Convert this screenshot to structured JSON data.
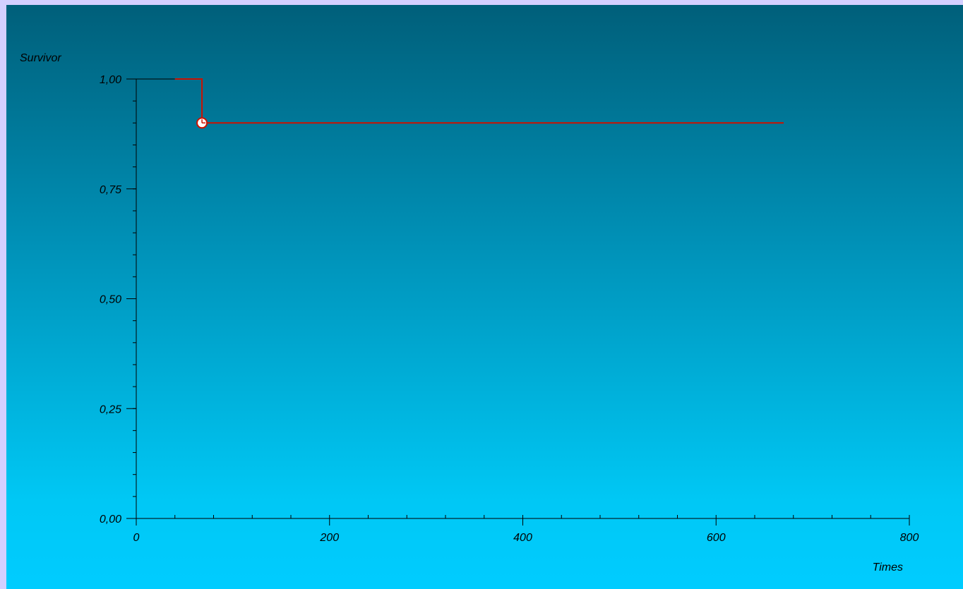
{
  "chart_data": {
    "type": "line",
    "title": "",
    "xlabel": "Times",
    "ylabel": "Survivor",
    "xlim": [
      0,
      800
    ],
    "ylim": [
      0,
      1
    ],
    "x_ticks": [
      0,
      200,
      400,
      600,
      800
    ],
    "x_tick_labels": [
      "0",
      "200",
      "400",
      "600",
      "800"
    ],
    "y_ticks": [
      0,
      0.25,
      0.5,
      0.75,
      1
    ],
    "y_tick_labels": [
      "0,00",
      "0,25",
      "0,50",
      "0,75",
      "1,00"
    ],
    "x_minor_step": 40,
    "y_minor_step": 0.05,
    "grid": false,
    "series": [
      {
        "color": "#cc1100",
        "step_points": [
          [
            40,
            1.0
          ],
          [
            68,
            1.0
          ],
          [
            68,
            0.9
          ],
          [
            670,
            0.9
          ]
        ],
        "event_markers": [
          [
            68,
            0.9
          ]
        ]
      }
    ]
  }
}
